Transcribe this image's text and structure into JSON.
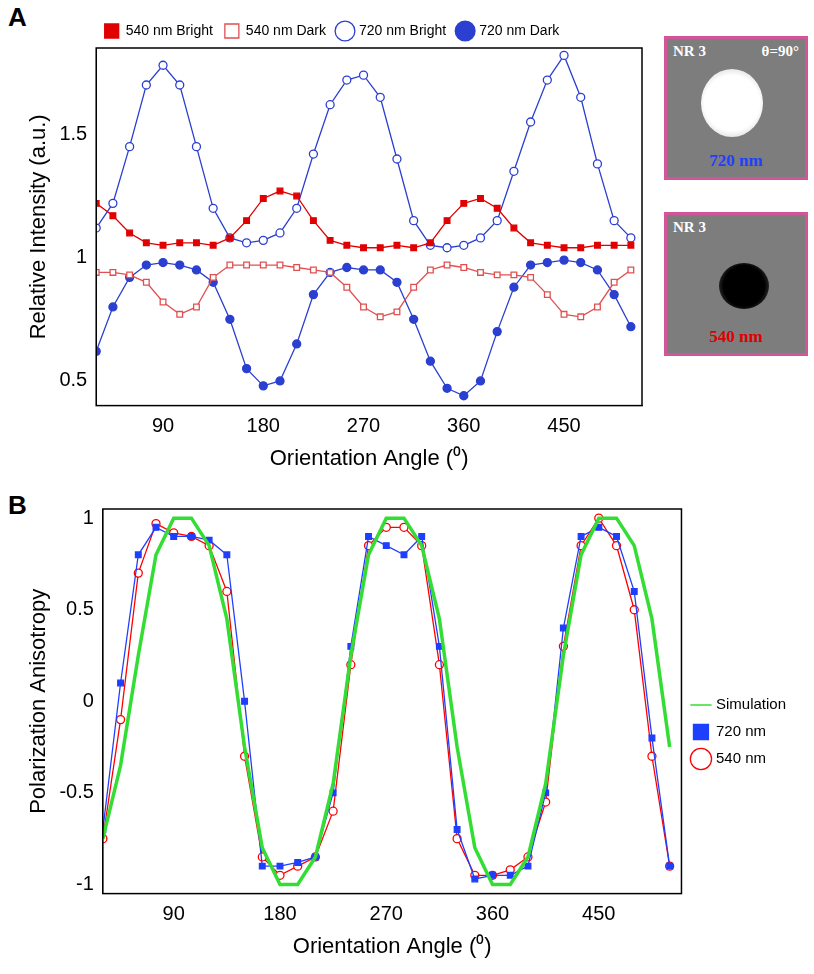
{
  "chart_data": [
    {
      "panel": "A",
      "type": "line",
      "x_label": "Orientation Angle (⁰)",
      "y_label": "Relative Intensity (a.u.)",
      "x": [
        30,
        45,
        60,
        75,
        90,
        105,
        120,
        135,
        150,
        165,
        180,
        195,
        210,
        225,
        240,
        255,
        270,
        285,
        300,
        315,
        330,
        345,
        360,
        375,
        390,
        405,
        420,
        435,
        450,
        465,
        480,
        495,
        510
      ],
      "xlim": [
        30,
        520
      ],
      "xticks": [
        90,
        180,
        270,
        360,
        450
      ],
      "ylim": [
        0.4,
        1.85
      ],
      "yticks": [
        0.5,
        1,
        1.5
      ],
      "grid": false,
      "legend": "top",
      "series": [
        {
          "name": "540 nm Bright",
          "color": "#e00000",
          "marker": "square",
          "values": [
            1.22,
            1.17,
            1.1,
            1.06,
            1.05,
            1.06,
            1.06,
            1.05,
            1.08,
            1.15,
            1.24,
            1.27,
            1.25,
            1.15,
            1.07,
            1.05,
            1.04,
            1.04,
            1.05,
            1.04,
            1.06,
            1.15,
            1.22,
            1.24,
            1.2,
            1.12,
            1.06,
            1.05,
            1.04,
            1.04,
            1.05,
            1.05,
            1.05
          ]
        },
        {
          "name": "540 nm Dark",
          "color": "#e05050",
          "marker": "square-open",
          "values": [
            0.94,
            0.94,
            0.93,
            0.9,
            0.82,
            0.77,
            0.8,
            0.92,
            0.97,
            0.97,
            0.97,
            0.97,
            0.96,
            0.95,
            0.94,
            0.88,
            0.8,
            0.76,
            0.78,
            0.88,
            0.95,
            0.97,
            0.96,
            0.94,
            0.93,
            0.93,
            0.92,
            0.85,
            0.77,
            0.76,
            0.8,
            0.9,
            0.95
          ]
        },
        {
          "name": "720 nm Bright",
          "color": "#2b3fd0",
          "marker": "circle-open",
          "values": [
            1.12,
            1.22,
            1.45,
            1.7,
            1.78,
            1.7,
            1.45,
            1.2,
            1.08,
            1.06,
            1.07,
            1.1,
            1.2,
            1.42,
            1.62,
            1.72,
            1.74,
            1.65,
            1.4,
            1.15,
            1.05,
            1.04,
            1.05,
            1.08,
            1.15,
            1.35,
            1.55,
            1.72,
            1.82,
            1.65,
            1.38,
            1.15,
            1.08
          ]
        },
        {
          "name": "720 nm Dark",
          "color": "#2b3fd0",
          "marker": "circle",
          "values": [
            0.62,
            0.8,
            0.92,
            0.97,
            0.98,
            0.97,
            0.95,
            0.9,
            0.75,
            0.55,
            0.48,
            0.5,
            0.65,
            0.85,
            0.94,
            0.96,
            0.95,
            0.95,
            0.9,
            0.75,
            0.58,
            0.47,
            0.44,
            0.5,
            0.7,
            0.88,
            0.97,
            0.98,
            0.99,
            0.98,
            0.95,
            0.85,
            0.72
          ]
        }
      ]
    },
    {
      "panel": "B",
      "type": "line",
      "x_label": "Orientation Angle (⁰)",
      "y_label": "Polarization Anisotropy",
      "x": [
        30,
        45,
        60,
        75,
        90,
        105,
        120,
        135,
        150,
        165,
        180,
        195,
        210,
        225,
        240,
        255,
        270,
        285,
        300,
        315,
        330,
        345,
        360,
        375,
        390,
        405,
        420,
        435,
        450,
        465,
        480,
        495,
        510
      ],
      "xlim": [
        30,
        520
      ],
      "xticks": [
        90,
        180,
        270,
        360,
        450
      ],
      "ylim": [
        -1.05,
        1.05
      ],
      "yticks": [
        -1,
        -0.5,
        0,
        0.5,
        1
      ],
      "grid": false,
      "legend": "right",
      "series": [
        {
          "name": "720 nm",
          "color": "#1f3fff",
          "marker": "square",
          "values": [
            -0.7,
            0.1,
            0.8,
            0.95,
            0.9,
            0.9,
            0.88,
            0.8,
            0.0,
            -0.9,
            -0.9,
            -0.88,
            -0.85,
            -0.5,
            0.3,
            0.9,
            0.85,
            0.8,
            0.9,
            0.3,
            -0.7,
            -0.97,
            -0.95,
            -0.95,
            -0.9,
            -0.5,
            0.4,
            0.9,
            0.95,
            0.9,
            0.6,
            -0.2,
            -0.9
          ]
        },
        {
          "name": "540 nm",
          "color": "#ff0000",
          "marker": "circle-open",
          "values": [
            -0.75,
            -0.1,
            0.7,
            0.97,
            0.92,
            0.9,
            0.85,
            0.6,
            -0.3,
            -0.85,
            -0.95,
            -0.9,
            -0.85,
            -0.6,
            0.2,
            0.85,
            0.95,
            0.95,
            0.85,
            0.2,
            -0.75,
            -0.95,
            -0.95,
            -0.92,
            -0.85,
            -0.55,
            0.3,
            0.85,
            1.0,
            0.85,
            0.5,
            -0.3,
            -0.9
          ]
        },
        {
          "name": "Simulation",
          "color": "#33dd33",
          "marker": "none",
          "values": [
            -0.75,
            -0.35,
            0.25,
            0.8,
            1.0,
            1.0,
            0.85,
            0.45,
            -0.25,
            -0.8,
            -1.0,
            -1.0,
            -0.85,
            -0.45,
            0.25,
            0.8,
            1.0,
            1.0,
            0.85,
            0.45,
            -0.25,
            -0.8,
            -1.0,
            -1.0,
            -0.85,
            -0.45,
            0.25,
            0.8,
            1.0,
            1.0,
            0.85,
            0.45,
            -0.25
          ]
        }
      ]
    }
  ],
  "images": [
    {
      "title": "NR 3",
      "annotation": "θ=90°",
      "caption": "720 nm",
      "color": "#2040ff",
      "spot": "bright"
    },
    {
      "title": "NR 3",
      "caption": "540 nm",
      "color": "#e00000",
      "spot": "dark"
    }
  ]
}
